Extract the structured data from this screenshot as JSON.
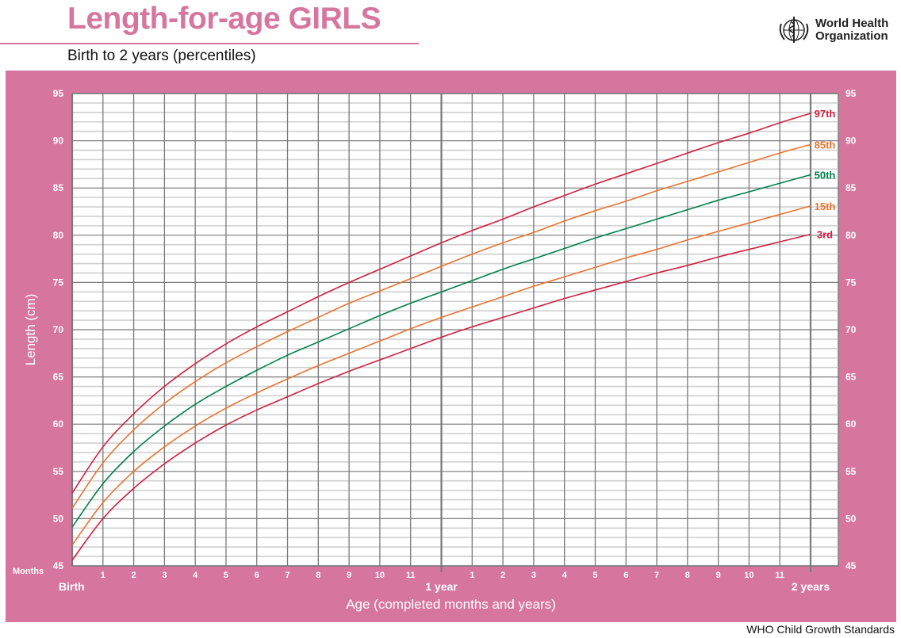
{
  "header": {
    "title": "Length-for-age GIRLS",
    "subtitle": "Birth to 2 years (percentiles)",
    "logo_icon": "who-emblem-icon",
    "org_line1": "World Health",
    "org_line2": "Organization"
  },
  "footer": {
    "source": "WHO Child Growth Standards"
  },
  "colors": {
    "panel": "#d6769f",
    "grid_major": "#7a7a7a",
    "grid_minor": "#cfcfcf",
    "p97": "#d0203f",
    "p85": "#ea7330",
    "p50": "#00804b",
    "p15": "#ea7330",
    "p3": "#d0203f"
  },
  "chart_data": {
    "type": "line",
    "title": "Length-for-age GIRLS",
    "subtitle": "Birth to 2 years (percentiles)",
    "xlabel": "Age (completed months and years)",
    "ylabel": "Length (cm)",
    "x_unit_label": "Months",
    "xlim": [
      0,
      24
    ],
    "ylim": [
      45,
      95
    ],
    "y_ticks": [
      45,
      50,
      55,
      60,
      65,
      70,
      75,
      80,
      85,
      90,
      95
    ],
    "x_tick_labels": [
      "",
      "1",
      "2",
      "3",
      "4",
      "5",
      "6",
      "7",
      "8",
      "9",
      "10",
      "11",
      "",
      "1",
      "2",
      "3",
      "4",
      "5",
      "6",
      "7",
      "8",
      "9",
      "10",
      "11",
      ""
    ],
    "x_milestones": [
      {
        "month": 0,
        "label": "Birth"
      },
      {
        "month": 12,
        "label": "1 year"
      },
      {
        "month": 24,
        "label": "2 years"
      }
    ],
    "grid": true,
    "x": [
      0,
      1,
      2,
      3,
      4,
      5,
      6,
      7,
      8,
      9,
      10,
      11,
      12,
      13,
      14,
      15,
      16,
      17,
      18,
      19,
      20,
      21,
      22,
      23,
      24
    ],
    "series": [
      {
        "name": "97th",
        "color_key": "p97",
        "values": [
          52.7,
          57.6,
          61.1,
          64.0,
          66.4,
          68.5,
          70.3,
          71.9,
          73.5,
          75.0,
          76.4,
          77.8,
          79.2,
          80.5,
          81.7,
          83.0,
          84.2,
          85.4,
          86.5,
          87.6,
          88.7,
          89.8,
          90.8,
          91.9,
          92.9
        ]
      },
      {
        "name": "85th",
        "color_key": "p85",
        "values": [
          51.1,
          55.9,
          59.4,
          62.2,
          64.5,
          66.5,
          68.2,
          69.8,
          71.3,
          72.8,
          74.1,
          75.4,
          76.7,
          78.0,
          79.2,
          80.3,
          81.5,
          82.6,
          83.6,
          84.7,
          85.7,
          86.7,
          87.7,
          88.7,
          89.6
        ]
      },
      {
        "name": "50th",
        "color_key": "p50",
        "values": [
          49.1,
          53.7,
          57.1,
          59.8,
          62.1,
          64.0,
          65.7,
          67.3,
          68.7,
          70.1,
          71.5,
          72.8,
          74.0,
          75.2,
          76.4,
          77.5,
          78.6,
          79.7,
          80.7,
          81.7,
          82.7,
          83.7,
          84.6,
          85.5,
          86.4
        ]
      },
      {
        "name": "15th",
        "color_key": "p15",
        "values": [
          47.2,
          51.7,
          55.0,
          57.6,
          59.8,
          61.7,
          63.3,
          64.8,
          66.2,
          67.5,
          68.8,
          70.1,
          71.3,
          72.4,
          73.5,
          74.6,
          75.6,
          76.6,
          77.6,
          78.5,
          79.5,
          80.4,
          81.3,
          82.2,
          83.1
        ]
      },
      {
        "name": "3rd",
        "color_key": "p3",
        "values": [
          45.6,
          50.0,
          53.2,
          55.8,
          58.0,
          59.9,
          61.5,
          62.9,
          64.3,
          65.6,
          66.8,
          68.0,
          69.2,
          70.3,
          71.3,
          72.3,
          73.3,
          74.2,
          75.1,
          76.0,
          76.8,
          77.7,
          78.5,
          79.3,
          80.1
        ]
      }
    ]
  }
}
